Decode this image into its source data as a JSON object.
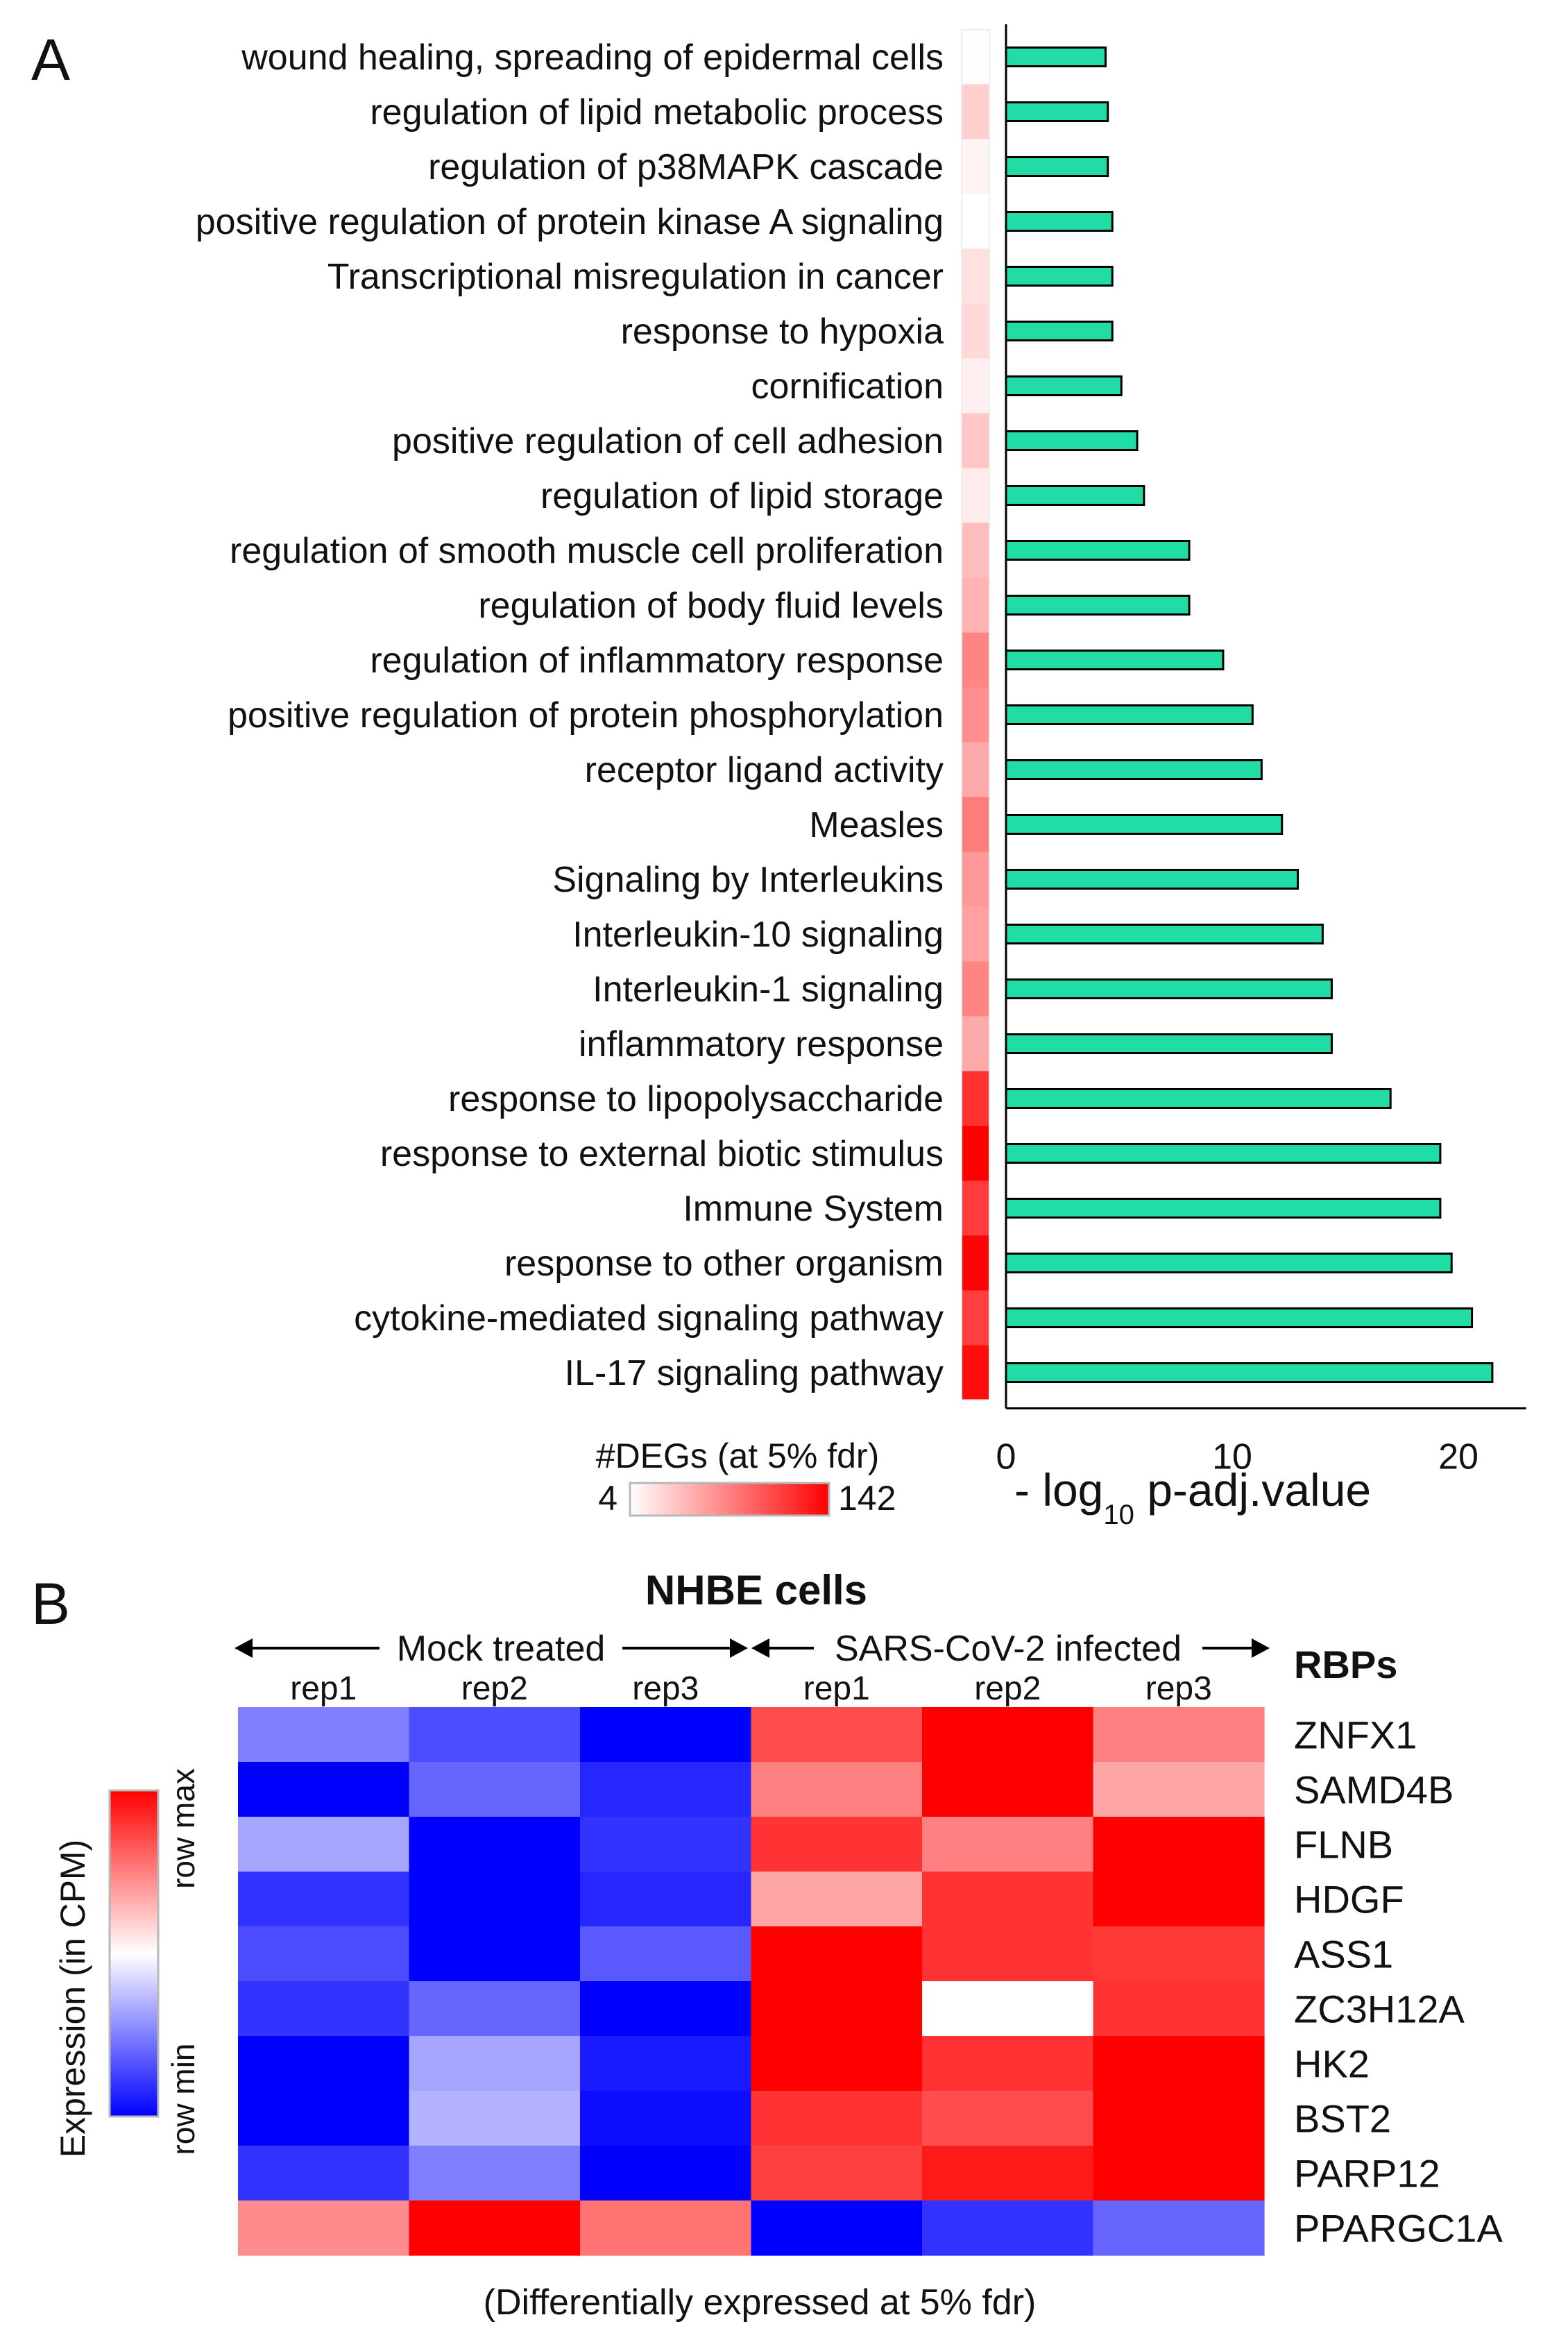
{
  "panels": {
    "a": "A",
    "b": "B"
  },
  "colors": {
    "bar": "#22dca6",
    "deg_low": "#ffffff",
    "deg_high": "#ff0000",
    "hm_max": "#ff0000",
    "hm_mid": "#ffffff",
    "hm_min": "#0000ff"
  },
  "chart_data": [
    {
      "type": "bar",
      "orientation": "horizontal",
      "categories": [
        "wound healing, spreading of epidermal cells",
        "regulation of lipid metabolic process",
        "regulation of p38MAPK cascade",
        "positive regulation of protein kinase A signaling",
        "Transcriptional misregulation in cancer",
        "response to hypoxia",
        "cornification",
        "positive regulation of cell adhesion",
        "regulation of lipid storage",
        "regulation of smooth muscle cell proliferation",
        "regulation of body fluid levels",
        "regulation of inflammatory response",
        "positive regulation of protein phosphorylation",
        "receptor ligand activity",
        "Measles",
        "Signaling by Interleukins",
        "Interleukin-10 signaling",
        "Interleukin-1 signaling",
        "inflammatory response",
        "response to lipopolysaccharide",
        "response to external biotic stimulus",
        "Immune System",
        "response to other organism",
        "cytokine-mediated signaling pathway",
        "IL-17 signaling pathway"
      ],
      "values": [
        4.4,
        4.5,
        4.5,
        4.7,
        4.7,
        4.7,
        5.1,
        5.8,
        6.1,
        8.1,
        8.1,
        9.6,
        10.9,
        11.3,
        12.2,
        12.9,
        14.0,
        14.4,
        14.4,
        17.0,
        19.2,
        19.2,
        19.7,
        20.6,
        21.5
      ],
      "deg_counts": [
        5,
        30,
        10,
        4,
        20,
        25,
        12,
        35,
        15,
        40,
        45,
        70,
        65,
        50,
        75,
        60,
        55,
        70,
        50,
        115,
        142,
        110,
        140,
        108,
        135
      ],
      "xlim": [
        0,
        23
      ],
      "xticks": [
        0,
        10,
        20
      ],
      "xlabel_prefix": "- log",
      "xlabel_sub": "10",
      "xlabel_suffix": " p-adj.value",
      "colorbar": {
        "title": "#DEGs (at 5% fdr)",
        "min_label": "4",
        "max_label": "142",
        "min": 4,
        "max": 142
      }
    },
    {
      "type": "heatmap",
      "title": "NHBE cells",
      "groups": [
        {
          "label": "Mock treated",
          "columns": 3
        },
        {
          "label": "SARS-CoV-2 infected",
          "columns": 3
        }
      ],
      "columns": [
        "rep1",
        "rep2",
        "rep3",
        "rep1",
        "rep2",
        "rep3"
      ],
      "row_header": "RBPs",
      "rows": [
        "ZNFX1",
        "SAMD4B",
        "FLNB",
        "HDGF",
        "ASS1",
        "ZC3H12A",
        "HK2",
        "BST2",
        "PARP12",
        "PPARGC1A"
      ],
      "values": [
        [
          -0.5,
          -0.7,
          -1.0,
          0.7,
          1.0,
          0.5
        ],
        [
          -1.0,
          -0.6,
          -0.85,
          0.5,
          1.0,
          0.35
        ],
        [
          -0.35,
          -1.0,
          -0.8,
          0.8,
          0.5,
          1.0
        ],
        [
          -0.8,
          -1.0,
          -0.85,
          0.35,
          0.8,
          1.0
        ],
        [
          -0.7,
          -1.0,
          -0.65,
          1.0,
          0.8,
          0.78
        ],
        [
          -0.8,
          -0.6,
          -1.0,
          1.0,
          0.0,
          0.8
        ],
        [
          -1.0,
          -0.35,
          -0.9,
          1.0,
          0.8,
          1.0
        ],
        [
          -1.0,
          -0.3,
          -0.95,
          0.8,
          0.7,
          1.0
        ],
        [
          -0.8,
          -0.5,
          -1.0,
          0.75,
          0.9,
          1.0
        ],
        [
          0.45,
          1.0,
          0.55,
          -1.0,
          -0.8,
          -0.6
        ]
      ],
      "colorbar": {
        "title": "Expression (in CPM)",
        "max_label": "row max",
        "min_label": "row min"
      },
      "caption": "(Differentially expressed at 5% fdr)"
    }
  ]
}
